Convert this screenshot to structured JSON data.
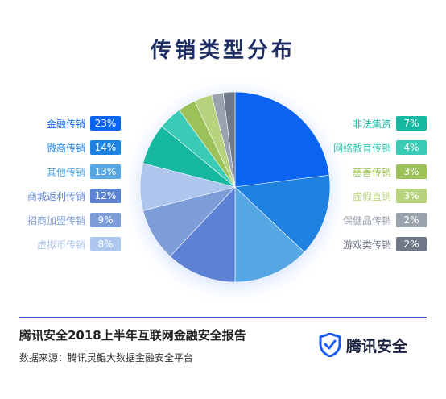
{
  "title": "传销类型分布",
  "chart_data": {
    "type": "pie",
    "title": "传销类型分布",
    "slices": [
      {
        "label": "金融传销",
        "value": 23,
        "pct": "23%",
        "color": "#0b63f2",
        "side": "left"
      },
      {
        "label": "微商传销",
        "value": 14,
        "pct": "14%",
        "color": "#2082e0",
        "side": "left"
      },
      {
        "label": "其他传销",
        "value": 13,
        "pct": "13%",
        "color": "#56a7e3",
        "side": "left"
      },
      {
        "label": "商城返利传销",
        "value": 12,
        "pct": "12%",
        "color": "#5d82d3",
        "side": "left"
      },
      {
        "label": "招商加盟传销",
        "value": 9,
        "pct": "9%",
        "color": "#7d9dd8",
        "side": "left"
      },
      {
        "label": "虚拟币传销",
        "value": 8,
        "pct": "8%",
        "color": "#adc6ee",
        "side": "left"
      },
      {
        "label": "非法集资",
        "value": 7,
        "pct": "7%",
        "color": "#17b8a1",
        "side": "right"
      },
      {
        "label": "网络教育传销",
        "value": 4,
        "pct": "4%",
        "color": "#39cbb5",
        "side": "right"
      },
      {
        "label": "慈善传销",
        "value": 3,
        "pct": "3%",
        "color": "#9cc158",
        "side": "right"
      },
      {
        "label": "虚假直销",
        "value": 3,
        "pct": "3%",
        "color": "#b8d37e",
        "side": "right"
      },
      {
        "label": "保健品传销",
        "value": 2,
        "pct": "2%",
        "color": "#9aa2ad",
        "side": "right"
      },
      {
        "label": "游戏类传销",
        "value": 2,
        "pct": "2%",
        "color": "#6f7887",
        "side": "right"
      }
    ]
  },
  "footer": {
    "report_title": "腾讯安全2018上半年互联网金融安全报告",
    "source": "数据来源：腾讯灵鲲大数据金融安全平台",
    "brand": "腾讯安全",
    "brand_color": "#1b5cf0"
  }
}
